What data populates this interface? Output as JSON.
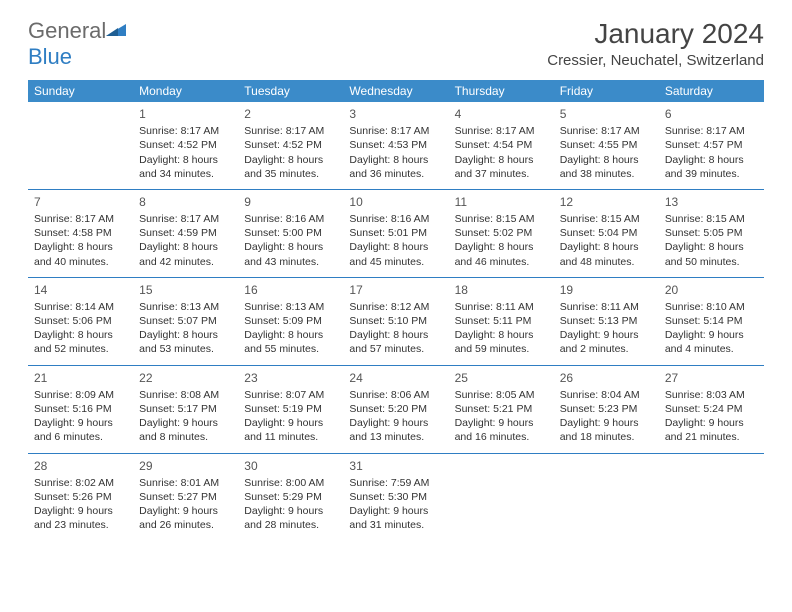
{
  "brand": {
    "word1": "General",
    "word2": "Blue",
    "color1": "#6b6b6b",
    "color2": "#2f7ec3"
  },
  "title": "January 2024",
  "location": "Cressier, Neuchatel, Switzerland",
  "header_bg": "#3b8bc9",
  "border_color": "#2f7ec3",
  "days_of_week": [
    "Sunday",
    "Monday",
    "Tuesday",
    "Wednesday",
    "Thursday",
    "Friday",
    "Saturday"
  ],
  "weeks": [
    [
      null,
      {
        "n": "1",
        "sr": "Sunrise: 8:17 AM",
        "ss": "Sunset: 4:52 PM",
        "d1": "Daylight: 8 hours",
        "d2": "and 34 minutes."
      },
      {
        "n": "2",
        "sr": "Sunrise: 8:17 AM",
        "ss": "Sunset: 4:52 PM",
        "d1": "Daylight: 8 hours",
        "d2": "and 35 minutes."
      },
      {
        "n": "3",
        "sr": "Sunrise: 8:17 AM",
        "ss": "Sunset: 4:53 PM",
        "d1": "Daylight: 8 hours",
        "d2": "and 36 minutes."
      },
      {
        "n": "4",
        "sr": "Sunrise: 8:17 AM",
        "ss": "Sunset: 4:54 PM",
        "d1": "Daylight: 8 hours",
        "d2": "and 37 minutes."
      },
      {
        "n": "5",
        "sr": "Sunrise: 8:17 AM",
        "ss": "Sunset: 4:55 PM",
        "d1": "Daylight: 8 hours",
        "d2": "and 38 minutes."
      },
      {
        "n": "6",
        "sr": "Sunrise: 8:17 AM",
        "ss": "Sunset: 4:57 PM",
        "d1": "Daylight: 8 hours",
        "d2": "and 39 minutes."
      }
    ],
    [
      {
        "n": "7",
        "sr": "Sunrise: 8:17 AM",
        "ss": "Sunset: 4:58 PM",
        "d1": "Daylight: 8 hours",
        "d2": "and 40 minutes."
      },
      {
        "n": "8",
        "sr": "Sunrise: 8:17 AM",
        "ss": "Sunset: 4:59 PM",
        "d1": "Daylight: 8 hours",
        "d2": "and 42 minutes."
      },
      {
        "n": "9",
        "sr": "Sunrise: 8:16 AM",
        "ss": "Sunset: 5:00 PM",
        "d1": "Daylight: 8 hours",
        "d2": "and 43 minutes."
      },
      {
        "n": "10",
        "sr": "Sunrise: 8:16 AM",
        "ss": "Sunset: 5:01 PM",
        "d1": "Daylight: 8 hours",
        "d2": "and 45 minutes."
      },
      {
        "n": "11",
        "sr": "Sunrise: 8:15 AM",
        "ss": "Sunset: 5:02 PM",
        "d1": "Daylight: 8 hours",
        "d2": "and 46 minutes."
      },
      {
        "n": "12",
        "sr": "Sunrise: 8:15 AM",
        "ss": "Sunset: 5:04 PM",
        "d1": "Daylight: 8 hours",
        "d2": "and 48 minutes."
      },
      {
        "n": "13",
        "sr": "Sunrise: 8:15 AM",
        "ss": "Sunset: 5:05 PM",
        "d1": "Daylight: 8 hours",
        "d2": "and 50 minutes."
      }
    ],
    [
      {
        "n": "14",
        "sr": "Sunrise: 8:14 AM",
        "ss": "Sunset: 5:06 PM",
        "d1": "Daylight: 8 hours",
        "d2": "and 52 minutes."
      },
      {
        "n": "15",
        "sr": "Sunrise: 8:13 AM",
        "ss": "Sunset: 5:07 PM",
        "d1": "Daylight: 8 hours",
        "d2": "and 53 minutes."
      },
      {
        "n": "16",
        "sr": "Sunrise: 8:13 AM",
        "ss": "Sunset: 5:09 PM",
        "d1": "Daylight: 8 hours",
        "d2": "and 55 minutes."
      },
      {
        "n": "17",
        "sr": "Sunrise: 8:12 AM",
        "ss": "Sunset: 5:10 PM",
        "d1": "Daylight: 8 hours",
        "d2": "and 57 minutes."
      },
      {
        "n": "18",
        "sr": "Sunrise: 8:11 AM",
        "ss": "Sunset: 5:11 PM",
        "d1": "Daylight: 8 hours",
        "d2": "and 59 minutes."
      },
      {
        "n": "19",
        "sr": "Sunrise: 8:11 AM",
        "ss": "Sunset: 5:13 PM",
        "d1": "Daylight: 9 hours",
        "d2": "and 2 minutes."
      },
      {
        "n": "20",
        "sr": "Sunrise: 8:10 AM",
        "ss": "Sunset: 5:14 PM",
        "d1": "Daylight: 9 hours",
        "d2": "and 4 minutes."
      }
    ],
    [
      {
        "n": "21",
        "sr": "Sunrise: 8:09 AM",
        "ss": "Sunset: 5:16 PM",
        "d1": "Daylight: 9 hours",
        "d2": "and 6 minutes."
      },
      {
        "n": "22",
        "sr": "Sunrise: 8:08 AM",
        "ss": "Sunset: 5:17 PM",
        "d1": "Daylight: 9 hours",
        "d2": "and 8 minutes."
      },
      {
        "n": "23",
        "sr": "Sunrise: 8:07 AM",
        "ss": "Sunset: 5:19 PM",
        "d1": "Daylight: 9 hours",
        "d2": "and 11 minutes."
      },
      {
        "n": "24",
        "sr": "Sunrise: 8:06 AM",
        "ss": "Sunset: 5:20 PM",
        "d1": "Daylight: 9 hours",
        "d2": "and 13 minutes."
      },
      {
        "n": "25",
        "sr": "Sunrise: 8:05 AM",
        "ss": "Sunset: 5:21 PM",
        "d1": "Daylight: 9 hours",
        "d2": "and 16 minutes."
      },
      {
        "n": "26",
        "sr": "Sunrise: 8:04 AM",
        "ss": "Sunset: 5:23 PM",
        "d1": "Daylight: 9 hours",
        "d2": "and 18 minutes."
      },
      {
        "n": "27",
        "sr": "Sunrise: 8:03 AM",
        "ss": "Sunset: 5:24 PM",
        "d1": "Daylight: 9 hours",
        "d2": "and 21 minutes."
      }
    ],
    [
      {
        "n": "28",
        "sr": "Sunrise: 8:02 AM",
        "ss": "Sunset: 5:26 PM",
        "d1": "Daylight: 9 hours",
        "d2": "and 23 minutes."
      },
      {
        "n": "29",
        "sr": "Sunrise: 8:01 AM",
        "ss": "Sunset: 5:27 PM",
        "d1": "Daylight: 9 hours",
        "d2": "and 26 minutes."
      },
      {
        "n": "30",
        "sr": "Sunrise: 8:00 AM",
        "ss": "Sunset: 5:29 PM",
        "d1": "Daylight: 9 hours",
        "d2": "and 28 minutes."
      },
      {
        "n": "31",
        "sr": "Sunrise: 7:59 AM",
        "ss": "Sunset: 5:30 PM",
        "d1": "Daylight: 9 hours",
        "d2": "and 31 minutes."
      },
      null,
      null,
      null
    ]
  ]
}
